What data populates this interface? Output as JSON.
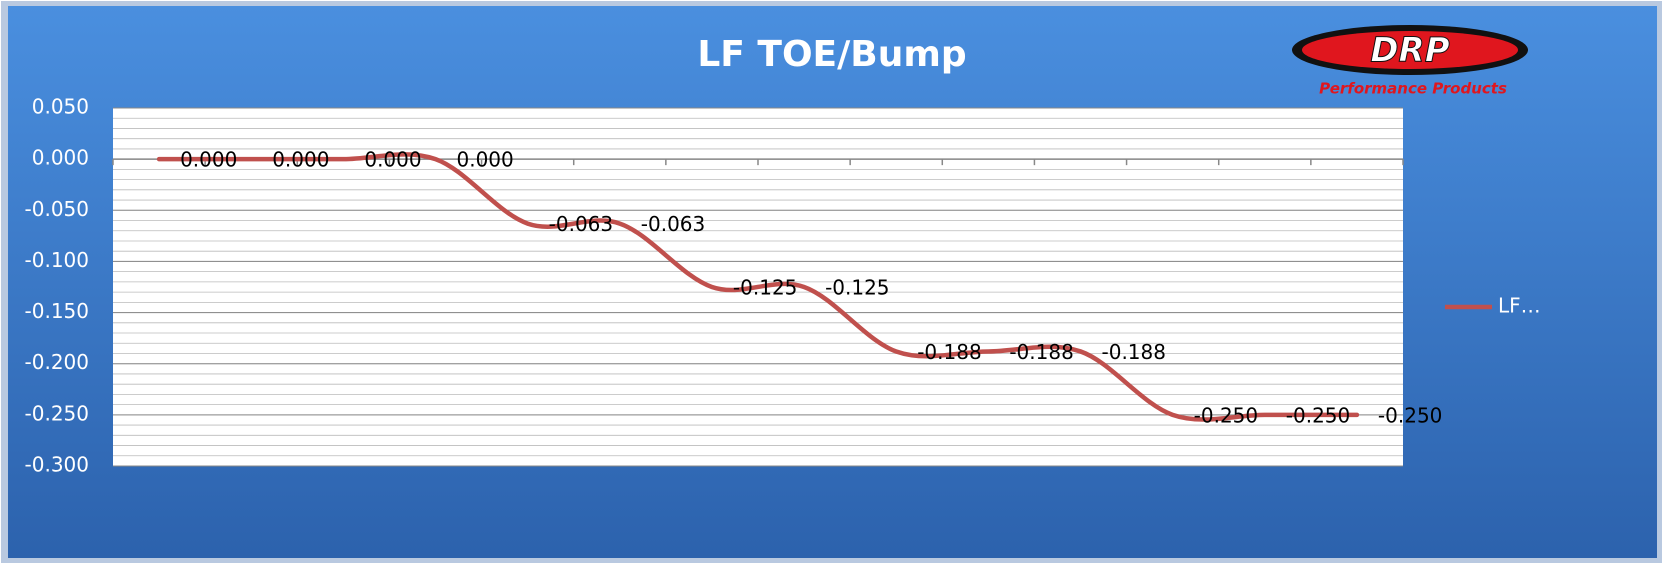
{
  "chart_data": {
    "type": "line",
    "title": "LF TOE/Bump",
    "logo": {
      "text": "DRP",
      "subtitle": "Performance Products"
    },
    "categories": [
      null,
      null,
      null,
      null,
      null,
      null,
      null,
      null,
      null,
      null,
      null,
      null,
      null,
      null
    ],
    "series": [
      {
        "name": "LF…",
        "color": "#c0504d",
        "values": [
          0,
          0,
          0,
          0,
          -0.063,
          -0.063,
          -0.125,
          -0.125,
          -0.188,
          -0.188,
          -0.188,
          -0.25,
          -0.25,
          -0.25
        ],
        "value_labels": [
          "0.000",
          "0.000",
          "0.000",
          "0.000",
          "-0.063",
          "-0.063",
          "-0.125",
          "-0.125",
          "-0.188",
          "-0.188",
          "-0.188",
          "-0.250",
          "-0.250",
          "-0.250"
        ]
      }
    ],
    "ylim": [
      -0.3,
      0.05
    ],
    "yticks": [
      {
        "value": -0.3,
        "label": "-0.300"
      },
      {
        "value": -0.25,
        "label": "-0.250"
      },
      {
        "value": -0.2,
        "label": "-0.200"
      },
      {
        "value": -0.15,
        "label": "-0.150"
      },
      {
        "value": -0.1,
        "label": "-0.100"
      },
      {
        "value": -0.05,
        "label": "-0.050"
      },
      {
        "value": 0,
        "label": "0.000"
      },
      {
        "value": 0.05,
        "label": "0.050"
      }
    ],
    "grid": true,
    "smooth": true,
    "legend": "right"
  }
}
